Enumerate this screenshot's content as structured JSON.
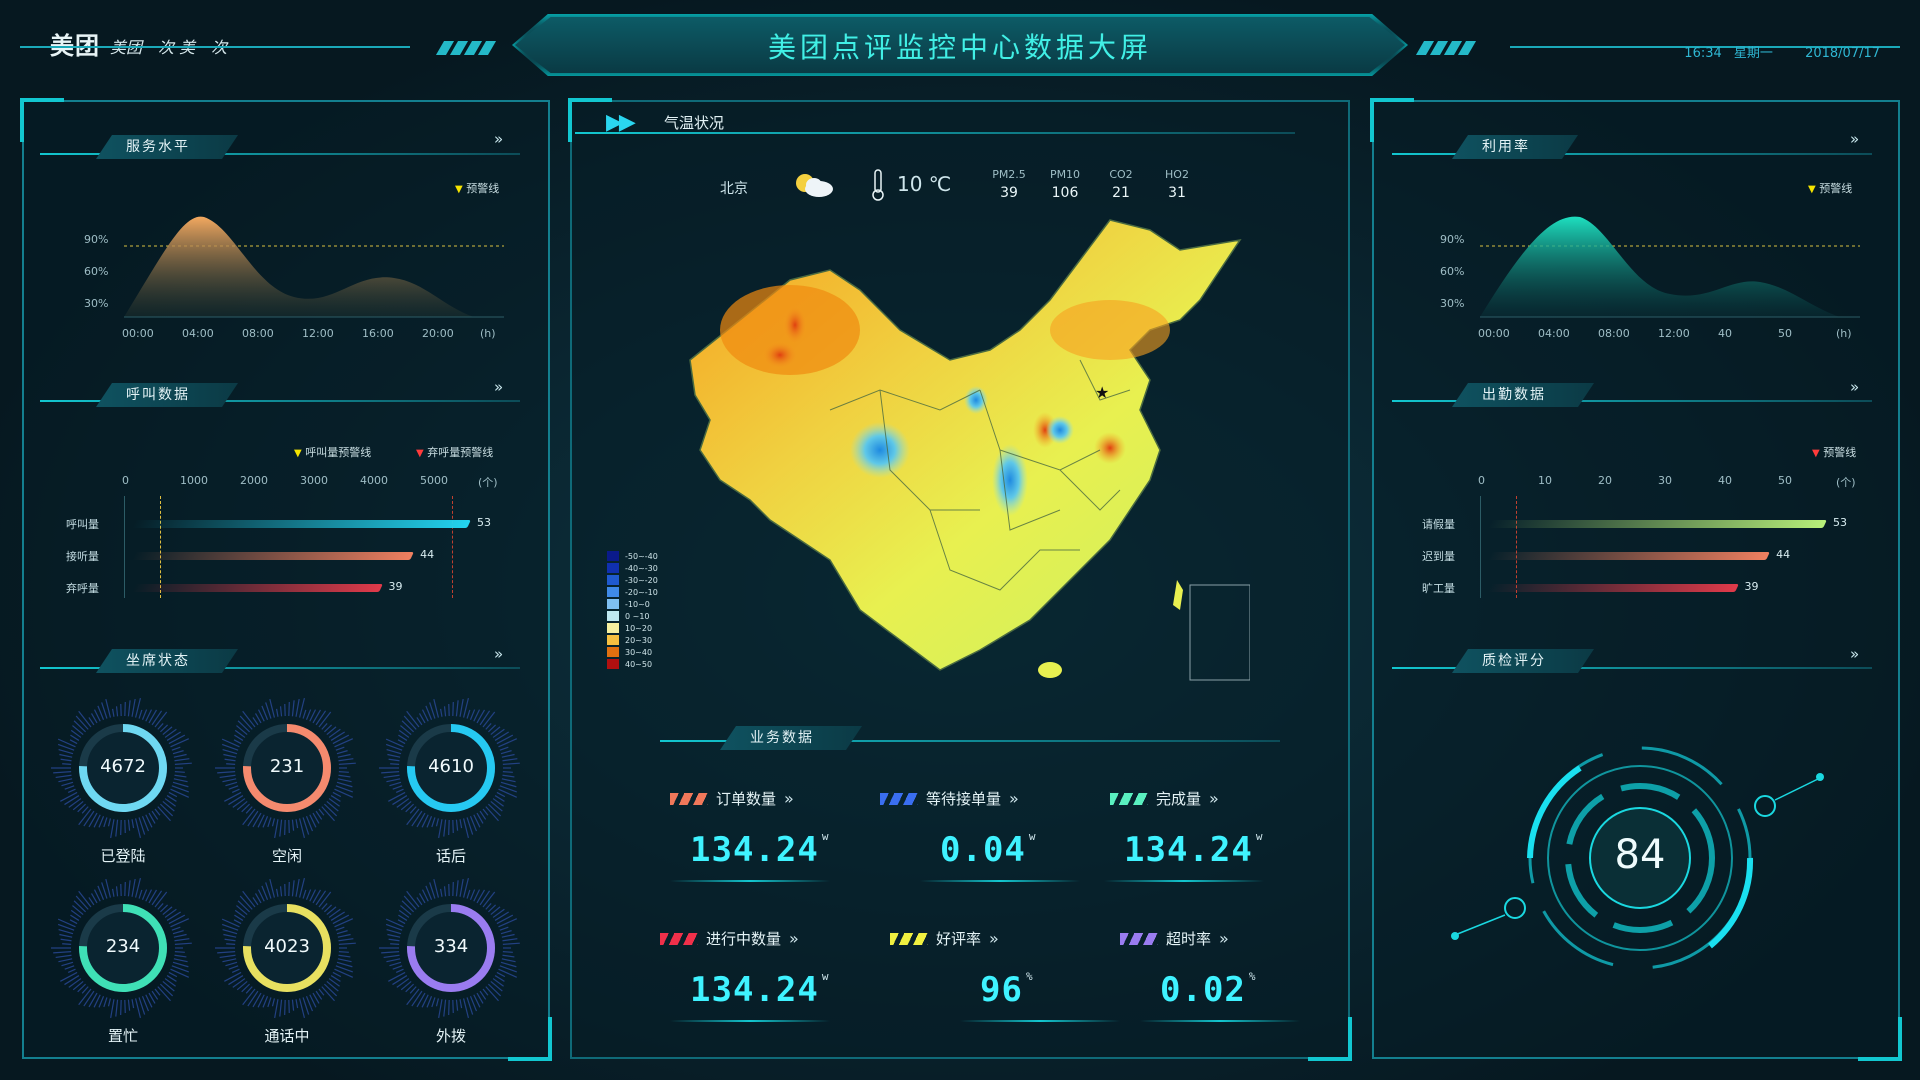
{
  "header": {
    "logo": "美团",
    "slogan": "美团一次 美一次",
    "title": "美团点评监控中心数据大屏",
    "time": "16:34",
    "weekday": "星期一",
    "date": "2018/07/17"
  },
  "service_level": {
    "title": "服务水平",
    "warning_label": "预警线",
    "y_ticks": [
      "90%",
      "60%",
      "30%"
    ],
    "x_ticks": [
      "00:00",
      "04:00",
      "08:00",
      "12:00",
      "16:00",
      "20:00",
      "(h)"
    ]
  },
  "call_data": {
    "title": "呼叫数据",
    "legend": [
      "呼叫量预警线",
      "弃呼量预警线"
    ],
    "x_ticks": [
      "0",
      "1000",
      "2000",
      "3000",
      "4000",
      "5000",
      "(个)"
    ],
    "rows": [
      {
        "label": "呼叫量",
        "value": 53,
        "color": "#23d4f0"
      },
      {
        "label": "接听量",
        "value": 44,
        "color": "#f08060"
      },
      {
        "label": "弃呼量",
        "value": 39,
        "color": "#e03a4a"
      }
    ]
  },
  "seat_status": {
    "title": "坐席状态",
    "items": [
      {
        "value": "4672",
        "label": "已登陆",
        "color": "#6fd8f2"
      },
      {
        "value": "231",
        "label": "空闲",
        "color": "#f58a6e"
      },
      {
        "value": "4610",
        "label": "话后",
        "color": "#26c9f2"
      },
      {
        "value": "234",
        "label": "置忙",
        "color": "#3fe0b6"
      },
      {
        "value": "4023",
        "label": "通话中",
        "color": "#e8e060"
      },
      {
        "value": "334",
        "label": "外拨",
        "color": "#9a7cf0"
      }
    ]
  },
  "weather": {
    "title": "气温状况",
    "city": "北京",
    "temp": "10 ℃",
    "aq": [
      {
        "k": "PM2.5",
        "v": "39"
      },
      {
        "k": "PM10",
        "v": "106"
      },
      {
        "k": "CO2",
        "v": "21"
      },
      {
        "k": "HO2",
        "v": "31"
      }
    ],
    "legend": [
      {
        "label": "-50~-40",
        "color": "#0a1a8a"
      },
      {
        "label": "-40~-30",
        "color": "#1030b0"
      },
      {
        "label": "-30~-20",
        "color": "#1f5ad0"
      },
      {
        "label": "-20~-10",
        "color": "#3f8ae8"
      },
      {
        "label": "-10~0",
        "color": "#7fc0f2"
      },
      {
        "label": "0 ~10",
        "color": "#bfe8f0"
      },
      {
        "label": "10~20",
        "color": "#f6f0a0"
      },
      {
        "label": "20~30",
        "color": "#f6c040"
      },
      {
        "label": "30~40",
        "color": "#e07010"
      },
      {
        "label": "40~50",
        "color": "#b01010"
      }
    ]
  },
  "business": {
    "title": "业务数据",
    "metrics": [
      {
        "label": "订单数量",
        "value": "134.24",
        "unit": "w",
        "color": "#f0785a"
      },
      {
        "label": "等待接单量",
        "value": "0.04",
        "unit": "w",
        "color": "#3a6ef0"
      },
      {
        "label": "完成量",
        "value": "134.24",
        "unit": "w",
        "color": "#5af0c0"
      },
      {
        "label": "进行中数量",
        "value": "134.24",
        "unit": "w",
        "color": "#f0304a"
      },
      {
        "label": "好评率",
        "value": "96",
        "unit": "%",
        "color": "#f0f040"
      },
      {
        "label": "超时率",
        "value": "0.02",
        "unit": "%",
        "color": "#9a7cf0"
      }
    ]
  },
  "utilization": {
    "title": "利用率",
    "warning_label": "预警线",
    "y_ticks": [
      "90%",
      "60%",
      "30%"
    ],
    "x_ticks": [
      "00:00",
      "04:00",
      "08:00",
      "12:00",
      "40",
      "50",
      "(h)"
    ]
  },
  "attendance": {
    "title": "出勤数据",
    "warning_label": "预警线",
    "x_ticks": [
      "0",
      "10",
      "20",
      "30",
      "40",
      "50",
      "(个)"
    ],
    "rows": [
      {
        "label": "请假量",
        "value": 53,
        "color": "#b8f07a"
      },
      {
        "label": "迟到量",
        "value": 44,
        "color": "#f08060"
      },
      {
        "label": "旷工量",
        "value": 39,
        "color": "#e03a4a"
      }
    ]
  },
  "quality": {
    "title": "质检评分",
    "score": "84"
  }
}
